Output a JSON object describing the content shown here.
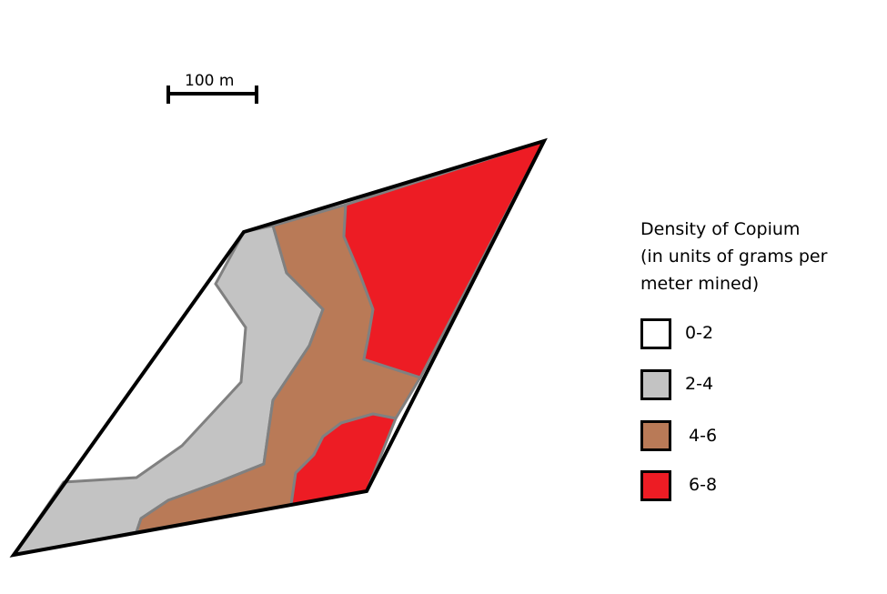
{
  "scale_bar": {
    "label": "100 m"
  },
  "legend": {
    "title_lines": [
      "Density of Copium",
      "(in units of grams per",
      "meter mined)"
    ],
    "items": [
      {
        "label": "0-2",
        "color": "#ffffff"
      },
      {
        "label": "2-4",
        "color": "#c3c3c3"
      },
      {
        "label": "4-6",
        "color": "#b97a57"
      },
      {
        "label": "6-8",
        "color": "#ed1c24"
      }
    ]
  },
  "colors": {
    "outline": "#000000",
    "boundary": "#808080"
  }
}
